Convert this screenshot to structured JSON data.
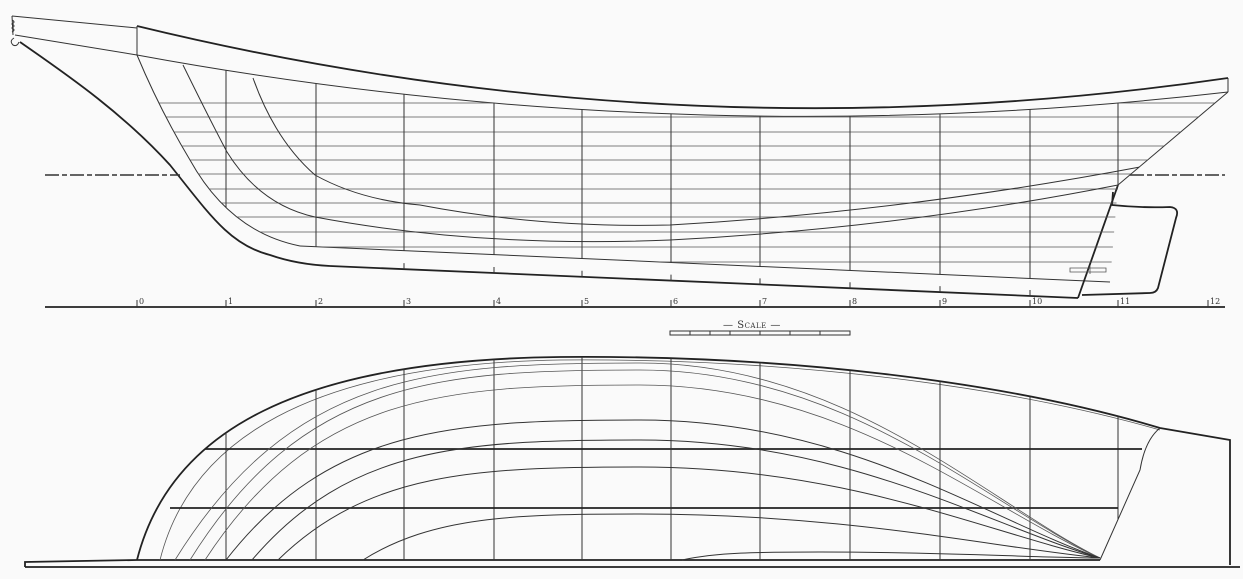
{
  "drawing": {
    "views": [
      "sheer-plan",
      "half-breadth-plan"
    ],
    "stations": [
      "0",
      "1",
      "2",
      "3",
      "4",
      "5",
      "6",
      "7",
      "8",
      "9",
      "10",
      "11",
      "12"
    ],
    "scale_label": "— Scale —",
    "line_color": "#333333",
    "background": "#fafafa"
  }
}
